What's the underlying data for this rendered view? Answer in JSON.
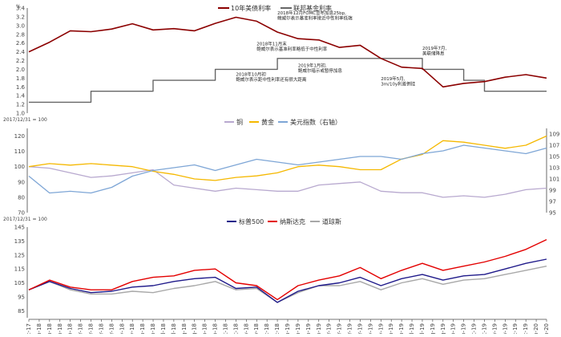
{
  "colors": {
    "us10y": "#8b0000",
    "fed": "#666666",
    "copper": "#b8a9cf",
    "gold": "#f5b800",
    "dxy": "#7ea6d6",
    "sp500": "#1f1a8a",
    "nasdaq": "#e30000",
    "dow": "#a8a8a8",
    "axis": "#444444"
  },
  "x_dates": [
    "Dec-17",
    "Jan-18",
    "Feb-18",
    "Mar-18",
    "Apr-18",
    "May-18",
    "Jun-18",
    "Jul-18",
    "Aug-18",
    "Sep-18",
    "Oct-18",
    "Nov-18",
    "Dec-18",
    "Jan-19",
    "Feb-19",
    "Mar-19",
    "Apr-19",
    "May-19",
    "Jun-19",
    "Jul-19",
    "Aug-19",
    "Sep-19",
    "Oct-19",
    "Nov-19",
    "Dec-19",
    "Jan-20"
  ],
  "bottom_tick_labels": [
    "Dec-17",
    "Jan-18",
    "Jan-18",
    "Feb-18",
    "Feb-18",
    "Mar-18",
    "Mar-18",
    "Apr-18",
    "Apr-18",
    "May-18",
    "May-18",
    "Jun-18",
    "Jun-18",
    "Jul-18",
    "Jul-18",
    "Aug-18",
    "Aug-18",
    "Sep-18",
    "Sep-18",
    "Oct-18",
    "Oct-18",
    "Nov-18",
    "Nov-18",
    "Dec-18",
    "Dec-18",
    "Jan-19",
    "Jan-19",
    "Feb-19",
    "Feb-19",
    "Mar-19",
    "Mar-19",
    "Apr-19",
    "Apr-19",
    "May-19",
    "May-19",
    "Jun-19",
    "Jun-19",
    "Jul-19",
    "Jul-19",
    "Aug-19",
    "Aug-19",
    "Sep-19",
    "Sep-19",
    "Oct-19",
    "Oct-19",
    "Nov-19",
    "Nov-19",
    "Dec-19",
    "Dec-19",
    "Jan-20",
    "Jan-20"
  ],
  "chart_data": [
    {
      "type": "line",
      "y_unit": "%",
      "ylim": [
        1.0,
        3.4
      ],
      "y_ticks": [
        "1.0",
        "1.2",
        "1.4",
        "1.6",
        "1.8",
        "2.0",
        "2.2",
        "2.4",
        "2.6",
        "2.8",
        "3.0",
        "3.2",
        "3.4"
      ],
      "series": [
        {
          "name": "10年美债利率",
          "color_key": "us10y",
          "x": [
            "Dec-17",
            "Jan-18",
            "Feb-18",
            "Mar-18",
            "Apr-18",
            "May-18",
            "Jun-18",
            "Jul-18",
            "Aug-18",
            "Sep-18",
            "Oct-18",
            "Nov-18",
            "Dec-18",
            "Jan-19",
            "Feb-19",
            "Mar-19",
            "Apr-19",
            "May-19",
            "Jun-19",
            "Jul-19",
            "Aug-19",
            "Sep-19",
            "Oct-19",
            "Nov-19",
            "Dec-19",
            "Jan-20"
          ],
          "values": [
            2.4,
            2.62,
            2.88,
            2.86,
            2.92,
            3.04,
            2.9,
            2.93,
            2.88,
            3.05,
            3.19,
            3.1,
            2.85,
            2.7,
            2.67,
            2.5,
            2.55,
            2.25,
            2.05,
            2.02,
            1.6,
            1.68,
            1.72,
            1.82,
            1.88,
            1.8
          ]
        },
        {
          "name": "联邦基金利率",
          "color_key": "fed",
          "x": [
            "Dec-17",
            "Mar-18",
            "Mar-18",
            "Jun-18",
            "Jun-18",
            "Sep-18",
            "Sep-18",
            "Dec-18",
            "Dec-18",
            "Jul-19",
            "Jul-19",
            "Sep-19",
            "Sep-19",
            "Oct-19",
            "Oct-19",
            "Jan-20"
          ],
          "values": [
            1.25,
            1.25,
            1.5,
            1.5,
            1.75,
            1.75,
            2.0,
            2.0,
            2.25,
            2.25,
            2.0,
            2.0,
            1.75,
            1.75,
            1.5,
            1.5
          ],
          "step": true
        }
      ],
      "annotations": [
        {
          "x": "Dec-18",
          "y": 3.25,
          "lines": [
            "2018年12月FOMC宣布加息25bp,",
            "鲍威尔表示基准利率接近中性利率低端"
          ]
        },
        {
          "x": "Nov-18",
          "y": 2.55,
          "lines": [
            "2018年11月末",
            "鲍威尔表示基准利率略低于中性利率"
          ]
        },
        {
          "x": "Oct-18",
          "y": 1.85,
          "lines": [
            "2018年10月初",
            "鲍威尔表示距中性利率还有很大距离"
          ]
        },
        {
          "x": "Jan-19",
          "y": 2.05,
          "lines": [
            "2019年1月初,",
            "鲍威尔暗示或暂停加息"
          ]
        },
        {
          "x": "Jul-19",
          "y": 2.45,
          "lines": [
            "2019年7月,",
            "美联储降息"
          ]
        },
        {
          "x": "May-19",
          "y": 1.75,
          "lines": [
            "2019年5月,",
            "3m/10y利差倒挂"
          ]
        }
      ]
    },
    {
      "type": "line",
      "ylim_left": [
        70,
        125
      ],
      "left_ticks": [
        "70",
        "80",
        "90",
        "100",
        "110",
        "120"
      ],
      "ylim_right": [
        95,
        110
      ],
      "right_ticks": [
        "95",
        "97",
        "99",
        "101",
        "103",
        "105",
        "107",
        "109"
      ],
      "base_label": "2017/12/31 = 100",
      "series": [
        {
          "name": "铜",
          "axis": "left",
          "color_key": "copper",
          "x": [
            "Dec-17",
            "Jan-18",
            "Feb-18",
            "Mar-18",
            "Apr-18",
            "May-18",
            "Jun-18",
            "Jul-18",
            "Aug-18",
            "Sep-18",
            "Oct-18",
            "Nov-18",
            "Dec-18",
            "Jan-19",
            "Feb-19",
            "Mar-19",
            "Apr-19",
            "May-19",
            "Jun-19",
            "Jul-19",
            "Aug-19",
            "Sep-19",
            "Oct-19",
            "Nov-19",
            "Dec-19",
            "Jan-20"
          ],
          "values": [
            100,
            99,
            96,
            93,
            94,
            96,
            98,
            88,
            86,
            84,
            86,
            85,
            84,
            84,
            88,
            89,
            90,
            84,
            83,
            83,
            80,
            81,
            80,
            82,
            85,
            86
          ]
        },
        {
          "name": "黄金",
          "axis": "left",
          "color_key": "gold",
          "x": [
            "Dec-17",
            "Jan-18",
            "Feb-18",
            "Mar-18",
            "Apr-18",
            "May-18",
            "Jun-18",
            "Jul-18",
            "Aug-18",
            "Sep-18",
            "Oct-18",
            "Nov-18",
            "Dec-18",
            "Jan-19",
            "Feb-19",
            "Mar-19",
            "Apr-19",
            "May-19",
            "Jun-19",
            "Jul-19",
            "Aug-19",
            "Sep-19",
            "Oct-19",
            "Nov-19",
            "Dec-19",
            "Jan-20"
          ],
          "values": [
            100,
            102,
            101,
            102,
            101,
            100,
            97,
            95,
            92,
            91,
            93,
            94,
            96,
            100,
            101,
            100,
            98,
            98,
            105,
            108,
            117,
            116,
            114,
            112,
            114,
            120
          ]
        },
        {
          "name": "美元指数（右轴）",
          "axis": "right",
          "color_key": "dxy",
          "x": [
            "Dec-17",
            "Jan-18",
            "Feb-18",
            "Mar-18",
            "Apr-18",
            "May-18",
            "Jun-18",
            "Jul-18",
            "Aug-18",
            "Sep-18",
            "Oct-18",
            "Nov-18",
            "Dec-18",
            "Jan-19",
            "Feb-19",
            "Mar-19",
            "Apr-19",
            "May-19",
            "Jun-19",
            "Jul-19",
            "Aug-19",
            "Sep-19",
            "Oct-19",
            "Nov-19",
            "Dec-19",
            "Jan-20"
          ],
          "values": [
            101.5,
            98.5,
            98.8,
            98.5,
            99.5,
            101.5,
            102.5,
            103,
            103.5,
            102.5,
            103.5,
            104.5,
            104,
            103.5,
            104,
            104.5,
            105,
            105,
            104.5,
            105.5,
            106,
            107,
            106.5,
            106,
            105.5,
            106.5
          ]
        }
      ]
    },
    {
      "type": "line",
      "ylim": [
        80,
        145
      ],
      "y_ticks": [
        "85",
        "95",
        "105",
        "115",
        "125",
        "135",
        "145"
      ],
      "base_label": "2017/12/31 = 100",
      "series": [
        {
          "name": "标普500",
          "color_key": "sp500",
          "x": [
            "Dec-17",
            "Jan-18",
            "Feb-18",
            "Mar-18",
            "Apr-18",
            "May-18",
            "Jun-18",
            "Jul-18",
            "Aug-18",
            "Sep-18",
            "Oct-18",
            "Nov-18",
            "Dec-18",
            "Jan-19",
            "Feb-19",
            "Mar-19",
            "Apr-19",
            "May-19",
            "Jun-19",
            "Jul-19",
            "Aug-19",
            "Sep-19",
            "Oct-19",
            "Nov-19",
            "Dec-19",
            "Jan-20"
          ],
          "values": [
            100,
            106,
            101,
            98,
            99,
            102,
            103,
            106,
            108,
            109,
            101,
            102,
            91,
            99,
            103,
            105,
            109,
            103,
            108,
            111,
            107,
            110,
            111,
            115,
            119,
            122
          ]
        },
        {
          "name": "纳斯达克",
          "color_key": "nasdaq",
          "x": [
            "Dec-17",
            "Jan-18",
            "Feb-18",
            "Mar-18",
            "Apr-18",
            "May-18",
            "Jun-18",
            "Jul-18",
            "Aug-18",
            "Sep-18",
            "Oct-18",
            "Nov-18",
            "Dec-18",
            "Jan-19",
            "Feb-19",
            "Mar-19",
            "Apr-19",
            "May-19",
            "Jun-19",
            "Jul-19",
            "Aug-19",
            "Sep-19",
            "Oct-19",
            "Nov-19",
            "Dec-19",
            "Jan-20"
          ],
          "values": [
            100,
            107,
            102,
            100,
            100,
            106,
            109,
            110,
            114,
            115,
            105,
            103,
            93,
            103,
            107,
            110,
            116,
            108,
            114,
            119,
            114,
            117,
            120,
            124,
            129,
            136
          ]
        },
        {
          "name": "道琼斯",
          "color_key": "dow",
          "x": [
            "Dec-17",
            "Jan-18",
            "Feb-18",
            "Mar-18",
            "Apr-18",
            "May-18",
            "Jun-18",
            "Jul-18",
            "Aug-18",
            "Sep-18",
            "Oct-18",
            "Nov-18",
            "Dec-18",
            "Jan-19",
            "Feb-19",
            "Mar-19",
            "Apr-19",
            "May-19",
            "Jun-19",
            "Jul-19",
            "Aug-19",
            "Sep-19",
            "Oct-19",
            "Nov-19",
            "Dec-19",
            "Jan-20"
          ],
          "values": [
            100,
            106,
            100,
            97,
            97,
            99,
            98,
            101,
            103,
            106,
            100,
            101,
            91,
            98,
            103,
            103,
            106,
            100,
            105,
            108,
            104,
            107,
            108,
            111,
            114,
            117
          ]
        }
      ]
    }
  ]
}
